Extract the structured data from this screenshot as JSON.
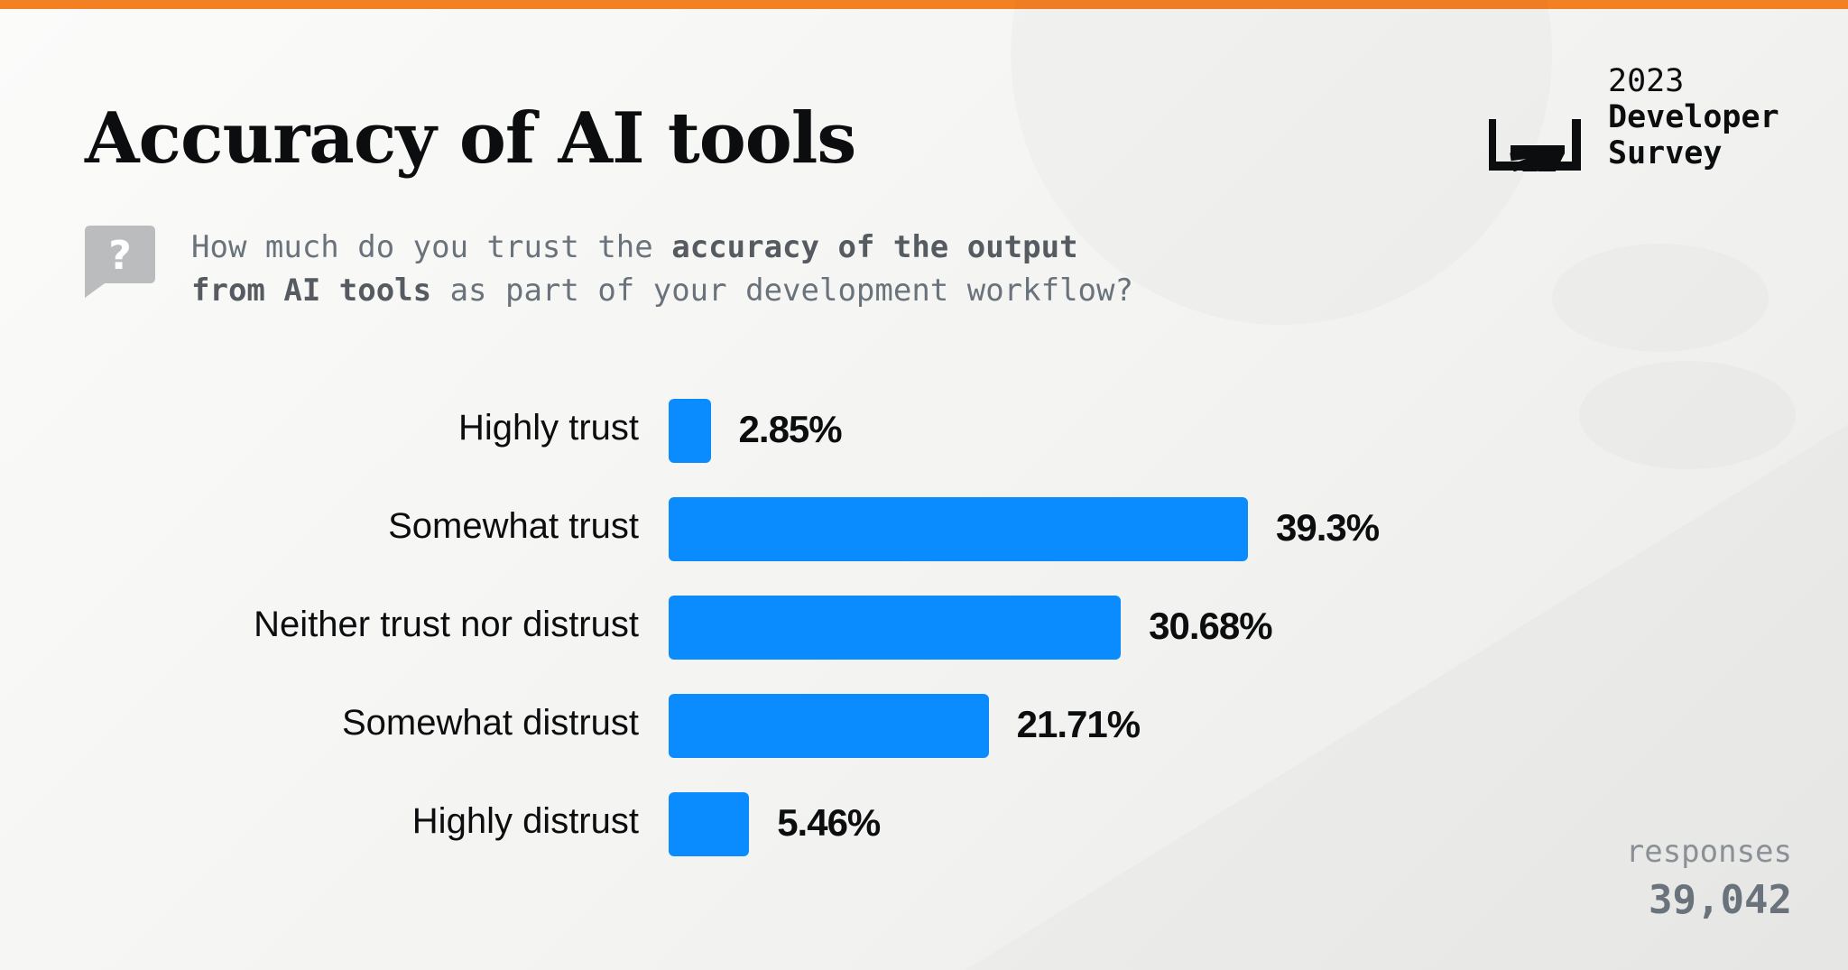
{
  "accent_color": "#f48024",
  "bar_color": "#0a8cff",
  "header": {
    "title": "Accuracy of AI tools",
    "question_icon": "question-bubble-icon",
    "question": {
      "part1": "How much do you trust the ",
      "bold1": "accuracy of the output",
      "bold2": "from AI tools",
      "part2": " as part of your development workflow?"
    }
  },
  "brand": {
    "logo_icon": "stack-overflow-logo-icon",
    "year": "2023",
    "line2": "Developer",
    "line3": "Survey"
  },
  "footer": {
    "responses_label": "responses",
    "responses_count": "39,042"
  },
  "chart_data": {
    "type": "bar",
    "orientation": "horizontal",
    "categories": [
      "Highly trust",
      "Somewhat trust",
      "Neither trust nor distrust",
      "Somewhat distrust",
      "Highly distrust"
    ],
    "values": [
      2.85,
      39.3,
      30.68,
      21.71,
      5.46
    ],
    "value_labels": [
      "2.85%",
      "39.3%",
      "30.68%",
      "21.71%",
      "5.46%"
    ],
    "unit": "%",
    "xlim": [
      0,
      39.3
    ],
    "grid": false,
    "legend": "none"
  }
}
